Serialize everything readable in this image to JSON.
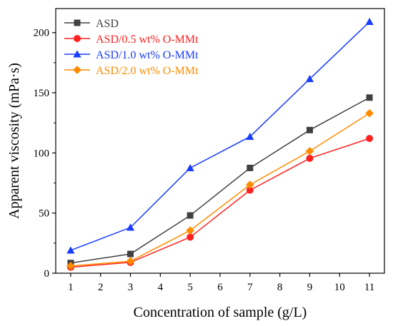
{
  "chart_data": {
    "type": "line",
    "xlabel": "Concentration of sample (g/L)",
    "ylabel": "Apparent viscosity (mPa·s)",
    "x": [
      1,
      3,
      5,
      7,
      9,
      11
    ],
    "xlim": [
      0.5,
      11.5
    ],
    "ylim": [
      0,
      220
    ],
    "xticks": [
      1,
      2,
      3,
      4,
      5,
      6,
      7,
      8,
      9,
      10,
      11
    ],
    "yticks": [
      0,
      50,
      100,
      150,
      200
    ],
    "grid": false,
    "legend_position": "top-left",
    "series": [
      {
        "name": "ASD",
        "color": "#404040",
        "marker": "square",
        "values": [
          8.5,
          16,
          48,
          87.5,
          119,
          146
        ]
      },
      {
        "name": "ASD/0.5 wt% O-MMt",
        "color": "#ff2020",
        "marker": "circle",
        "values": [
          5,
          9,
          30,
          69,
          95.5,
          112
        ]
      },
      {
        "name": "ASD/1.0 wt% O-MMt",
        "color": "#1a3cff",
        "marker": "triangle",
        "values": [
          19,
          38,
          87.5,
          113.5,
          161.5,
          209
        ]
      },
      {
        "name": "ASD/2.0 wt% O-MMt",
        "color": "#ff8c00",
        "marker": "diamond",
        "values": [
          6,
          10,
          35.5,
          73.5,
          101.5,
          133
        ]
      }
    ]
  }
}
